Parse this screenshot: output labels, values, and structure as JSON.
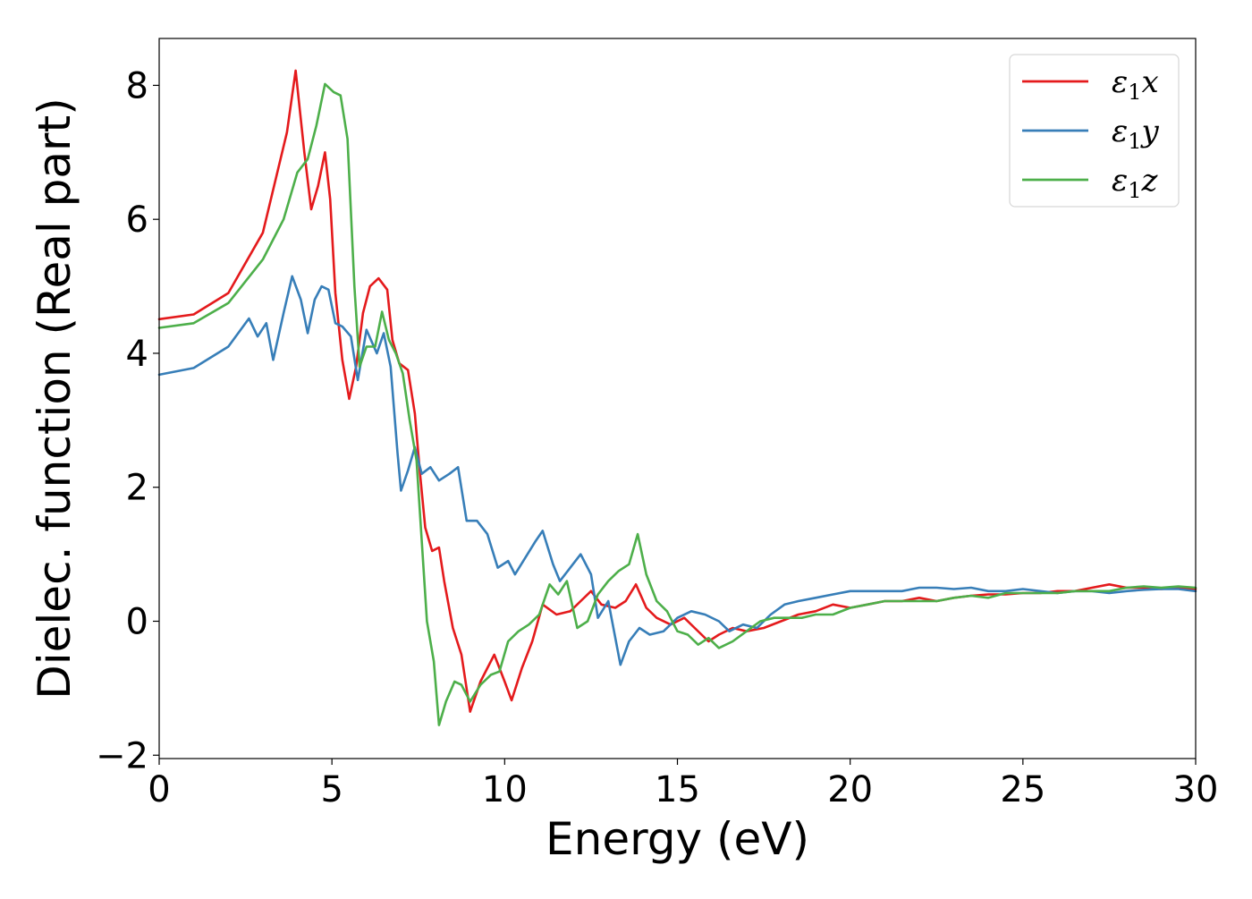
{
  "chart_data": {
    "type": "line",
    "xlabel": "Energy (eV)",
    "ylabel": "Dielec. function (Real part)",
    "xlim": [
      0,
      30
    ],
    "ylim": [
      -2.05,
      8.7
    ],
    "xticks": [
      0,
      5,
      10,
      15,
      20,
      25,
      30
    ],
    "xtick_labels": [
      "0",
      "5",
      "10",
      "15",
      "20",
      "25",
      "30"
    ],
    "yticks": [
      -2,
      0,
      2,
      4,
      6,
      8
    ],
    "ytick_labels": [
      "−2",
      "0",
      "2",
      "4",
      "6",
      "8"
    ],
    "grid": false,
    "legend_position": "top-right",
    "series": [
      {
        "name": "ε1x",
        "legend_symbol": "ε",
        "legend_sub": "1",
        "legend_var": "x",
        "color": "#e41a1c",
        "points": [
          [
            0,
            4.51
          ],
          [
            1,
            4.58
          ],
          [
            2,
            4.9
          ],
          [
            3,
            5.8
          ],
          [
            3.7,
            7.3
          ],
          [
            3.95,
            8.22
          ],
          [
            4.2,
            7.0
          ],
          [
            4.4,
            6.15
          ],
          [
            4.6,
            6.5
          ],
          [
            4.8,
            7.0
          ],
          [
            4.95,
            6.3
          ],
          [
            5.1,
            4.9
          ],
          [
            5.3,
            3.9
          ],
          [
            5.5,
            3.32
          ],
          [
            5.7,
            3.8
          ],
          [
            5.9,
            4.6
          ],
          [
            6.1,
            5.0
          ],
          [
            6.35,
            5.12
          ],
          [
            6.6,
            4.95
          ],
          [
            6.75,
            4.2
          ],
          [
            6.95,
            3.85
          ],
          [
            7.2,
            3.75
          ],
          [
            7.4,
            3.1
          ],
          [
            7.55,
            2.2
          ],
          [
            7.7,
            1.4
          ],
          [
            7.9,
            1.05
          ],
          [
            8.1,
            1.1
          ],
          [
            8.25,
            0.6
          ],
          [
            8.5,
            -0.1
          ],
          [
            8.75,
            -0.5
          ],
          [
            9.0,
            -1.35
          ],
          [
            9.3,
            -0.9
          ],
          [
            9.7,
            -0.5
          ],
          [
            10.0,
            -0.9
          ],
          [
            10.2,
            -1.18
          ],
          [
            10.5,
            -0.7
          ],
          [
            10.8,
            -0.3
          ],
          [
            11.1,
            0.25
          ],
          [
            11.5,
            0.1
          ],
          [
            11.9,
            0.15
          ],
          [
            12.2,
            0.3
          ],
          [
            12.5,
            0.45
          ],
          [
            12.8,
            0.25
          ],
          [
            13.2,
            0.2
          ],
          [
            13.5,
            0.3
          ],
          [
            13.8,
            0.55
          ],
          [
            14.1,
            0.2
          ],
          [
            14.4,
            0.05
          ],
          [
            14.8,
            -0.05
          ],
          [
            15.2,
            0.05
          ],
          [
            15.5,
            -0.1
          ],
          [
            15.9,
            -0.3
          ],
          [
            16.2,
            -0.2
          ],
          [
            16.6,
            -0.1
          ],
          [
            17.0,
            -0.15
          ],
          [
            17.5,
            -0.1
          ],
          [
            18.0,
            0.0
          ],
          [
            18.5,
            0.1
          ],
          [
            19.0,
            0.15
          ],
          [
            19.5,
            0.25
          ],
          [
            20.0,
            0.2
          ],
          [
            20.5,
            0.25
          ],
          [
            21.0,
            0.3
          ],
          [
            21.5,
            0.3
          ],
          [
            22.0,
            0.35
          ],
          [
            22.5,
            0.3
          ],
          [
            23.0,
            0.35
          ],
          [
            23.5,
            0.38
          ],
          [
            24.0,
            0.4
          ],
          [
            24.5,
            0.4
          ],
          [
            25.0,
            0.42
          ],
          [
            25.5,
            0.42
          ],
          [
            26.0,
            0.45
          ],
          [
            26.5,
            0.45
          ],
          [
            27.0,
            0.5
          ],
          [
            27.5,
            0.55
          ],
          [
            28.0,
            0.5
          ],
          [
            28.5,
            0.5
          ],
          [
            29.0,
            0.48
          ],
          [
            29.5,
            0.5
          ],
          [
            30.0,
            0.48
          ]
        ]
      },
      {
        "name": "ε1y",
        "legend_symbol": "ε",
        "legend_sub": "1",
        "legend_var": "y",
        "color": "#377eb8",
        "points": [
          [
            0,
            3.68
          ],
          [
            1,
            3.78
          ],
          [
            2,
            4.1
          ],
          [
            2.6,
            4.52
          ],
          [
            2.85,
            4.25
          ],
          [
            3.1,
            4.45
          ],
          [
            3.3,
            3.9
          ],
          [
            3.6,
            4.6
          ],
          [
            3.85,
            5.15
          ],
          [
            4.1,
            4.8
          ],
          [
            4.3,
            4.3
          ],
          [
            4.5,
            4.8
          ],
          [
            4.7,
            5.0
          ],
          [
            4.9,
            4.95
          ],
          [
            5.1,
            4.45
          ],
          [
            5.3,
            4.4
          ],
          [
            5.55,
            4.25
          ],
          [
            5.75,
            3.6
          ],
          [
            6.0,
            4.35
          ],
          [
            6.3,
            4.0
          ],
          [
            6.5,
            4.3
          ],
          [
            6.7,
            3.8
          ],
          [
            6.9,
            2.5
          ],
          [
            7.0,
            1.95
          ],
          [
            7.2,
            2.25
          ],
          [
            7.4,
            2.6
          ],
          [
            7.6,
            2.2
          ],
          [
            7.85,
            2.3
          ],
          [
            8.1,
            2.1
          ],
          [
            8.4,
            2.2
          ],
          [
            8.65,
            2.3
          ],
          [
            8.9,
            1.5
          ],
          [
            9.2,
            1.5
          ],
          [
            9.5,
            1.3
          ],
          [
            9.8,
            0.8
          ],
          [
            10.1,
            0.9
          ],
          [
            10.3,
            0.7
          ],
          [
            10.6,
            0.95
          ],
          [
            10.9,
            1.2
          ],
          [
            11.1,
            1.35
          ],
          [
            11.4,
            0.85
          ],
          [
            11.6,
            0.6
          ],
          [
            11.9,
            0.8
          ],
          [
            12.2,
            1.0
          ],
          [
            12.5,
            0.7
          ],
          [
            12.7,
            0.05
          ],
          [
            13.0,
            0.3
          ],
          [
            13.35,
            -0.65
          ],
          [
            13.6,
            -0.3
          ],
          [
            13.9,
            -0.1
          ],
          [
            14.2,
            -0.2
          ],
          [
            14.6,
            -0.15
          ],
          [
            15.0,
            0.05
          ],
          [
            15.4,
            0.15
          ],
          [
            15.8,
            0.1
          ],
          [
            16.2,
            0.0
          ],
          [
            16.5,
            -0.15
          ],
          [
            16.9,
            -0.05
          ],
          [
            17.3,
            -0.1
          ],
          [
            17.7,
            0.1
          ],
          [
            18.1,
            0.25
          ],
          [
            18.5,
            0.3
          ],
          [
            19.0,
            0.35
          ],
          [
            19.5,
            0.4
          ],
          [
            20.0,
            0.45
          ],
          [
            20.5,
            0.45
          ],
          [
            21.0,
            0.45
          ],
          [
            21.5,
            0.45
          ],
          [
            22.0,
            0.5
          ],
          [
            22.5,
            0.5
          ],
          [
            23.0,
            0.48
          ],
          [
            23.5,
            0.5
          ],
          [
            24.0,
            0.45
          ],
          [
            24.5,
            0.45
          ],
          [
            25.0,
            0.48
          ],
          [
            25.5,
            0.45
          ],
          [
            26.0,
            0.42
          ],
          [
            26.5,
            0.45
          ],
          [
            27.0,
            0.45
          ],
          [
            27.5,
            0.42
          ],
          [
            28.0,
            0.45
          ],
          [
            28.5,
            0.47
          ],
          [
            29.0,
            0.48
          ],
          [
            29.5,
            0.48
          ],
          [
            30.0,
            0.45
          ]
        ]
      },
      {
        "name": "ε1z",
        "legend_symbol": "ε",
        "legend_sub": "1",
        "legend_var": "z",
        "color": "#4daf4a",
        "points": [
          [
            0,
            4.38
          ],
          [
            1,
            4.45
          ],
          [
            2,
            4.75
          ],
          [
            3,
            5.4
          ],
          [
            3.6,
            6.0
          ],
          [
            4.0,
            6.7
          ],
          [
            4.3,
            6.9
          ],
          [
            4.55,
            7.4
          ],
          [
            4.8,
            8.02
          ],
          [
            5.05,
            7.9
          ],
          [
            5.25,
            7.85
          ],
          [
            5.45,
            7.2
          ],
          [
            5.65,
            5.0
          ],
          [
            5.8,
            3.8
          ],
          [
            6.0,
            4.1
          ],
          [
            6.25,
            4.1
          ],
          [
            6.45,
            4.62
          ],
          [
            6.65,
            4.2
          ],
          [
            6.85,
            4.0
          ],
          [
            7.05,
            3.7
          ],
          [
            7.25,
            3.0
          ],
          [
            7.45,
            2.4
          ],
          [
            7.6,
            1.2
          ],
          [
            7.75,
            0.0
          ],
          [
            7.95,
            -0.6
          ],
          [
            8.1,
            -1.55
          ],
          [
            8.3,
            -1.2
          ],
          [
            8.55,
            -0.9
          ],
          [
            8.75,
            -0.95
          ],
          [
            9.0,
            -1.2
          ],
          [
            9.3,
            -0.95
          ],
          [
            9.6,
            -0.8
          ],
          [
            9.85,
            -0.75
          ],
          [
            10.1,
            -0.3
          ],
          [
            10.4,
            -0.15
          ],
          [
            10.7,
            -0.05
          ],
          [
            11.0,
            0.1
          ],
          [
            11.3,
            0.55
          ],
          [
            11.55,
            0.4
          ],
          [
            11.8,
            0.6
          ],
          [
            12.1,
            -0.1
          ],
          [
            12.4,
            0.0
          ],
          [
            12.7,
            0.4
          ],
          [
            13.0,
            0.6
          ],
          [
            13.3,
            0.75
          ],
          [
            13.6,
            0.85
          ],
          [
            13.85,
            1.3
          ],
          [
            14.1,
            0.7
          ],
          [
            14.4,
            0.3
          ],
          [
            14.7,
            0.15
          ],
          [
            15.0,
            -0.15
          ],
          [
            15.3,
            -0.2
          ],
          [
            15.6,
            -0.35
          ],
          [
            15.9,
            -0.25
          ],
          [
            16.2,
            -0.4
          ],
          [
            16.6,
            -0.3
          ],
          [
            17.0,
            -0.15
          ],
          [
            17.4,
            0.0
          ],
          [
            17.8,
            0.05
          ],
          [
            18.2,
            0.05
          ],
          [
            18.6,
            0.05
          ],
          [
            19.0,
            0.1
          ],
          [
            19.5,
            0.1
          ],
          [
            20.0,
            0.2
          ],
          [
            20.5,
            0.25
          ],
          [
            21.0,
            0.3
          ],
          [
            21.5,
            0.3
          ],
          [
            22.0,
            0.3
          ],
          [
            22.5,
            0.3
          ],
          [
            23.0,
            0.35
          ],
          [
            23.5,
            0.38
          ],
          [
            24.0,
            0.35
          ],
          [
            24.5,
            0.42
          ],
          [
            25.0,
            0.42
          ],
          [
            25.5,
            0.42
          ],
          [
            26.0,
            0.42
          ],
          [
            26.5,
            0.45
          ],
          [
            27.0,
            0.45
          ],
          [
            27.5,
            0.45
          ],
          [
            28.0,
            0.5
          ],
          [
            28.5,
            0.52
          ],
          [
            29.0,
            0.5
          ],
          [
            29.5,
            0.52
          ],
          [
            30.0,
            0.5
          ]
        ]
      }
    ]
  }
}
